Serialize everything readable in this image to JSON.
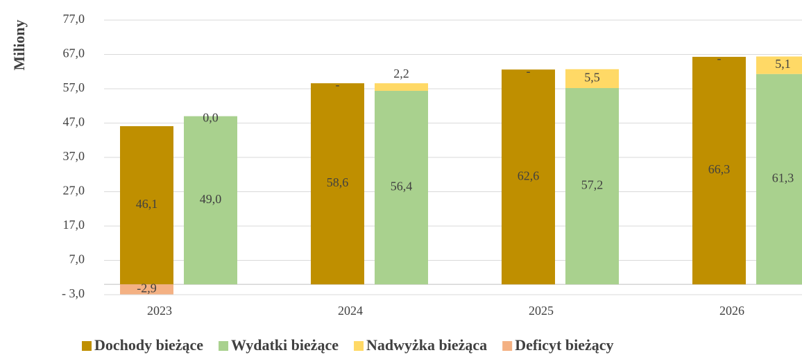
{
  "chart_data": {
    "type": "bar",
    "stacked": true,
    "y_label": "Miliony",
    "categories": [
      "2023",
      "2024",
      "2025",
      "2026"
    ],
    "ylim": [
      -3,
      77
    ],
    "yticks": [
      {
        "value": -3,
        "label": "- 3,0"
      },
      {
        "value": 7,
        "label": "7,0"
      },
      {
        "value": 17,
        "label": "17,0"
      },
      {
        "value": 27,
        "label": "27,0"
      },
      {
        "value": 37,
        "label": "37,0"
      },
      {
        "value": 47,
        "label": "47,0"
      },
      {
        "value": 57,
        "label": "57,0"
      },
      {
        "value": 67,
        "label": "67,0"
      },
      {
        "value": 77,
        "label": "77,0"
      }
    ],
    "grid": true,
    "legend": "bottom",
    "series": [
      {
        "name": "Dochody bieżące",
        "color": "#bf8f00",
        "stack": 0,
        "values": [
          46.1,
          58.6,
          62.6,
          66.3
        ],
        "value_labels": [
          "46,1",
          "58,6",
          "62,6",
          "66,3"
        ]
      },
      {
        "name": "Wydatki bieżące",
        "color": "#a9d18e",
        "stack": 1,
        "values": [
          49.0,
          56.4,
          57.2,
          61.3
        ],
        "value_labels": [
          "49,0",
          "56,4",
          "57,2",
          "61,3"
        ]
      },
      {
        "name": "Nadwyżka bieżąca",
        "color": "#ffd966",
        "stack": 1,
        "values": [
          0.0,
          2.2,
          5.5,
          5.1
        ],
        "value_labels": [
          "0,0",
          "2,2",
          "5,5",
          "5,1"
        ]
      },
      {
        "name": "Deficyt bieżący",
        "color": "#f4b183",
        "stack": 0,
        "values": [
          -2.9,
          0,
          0,
          0
        ],
        "value_labels": [
          "-2,9",
          "-",
          "-",
          "-"
        ]
      }
    ]
  }
}
